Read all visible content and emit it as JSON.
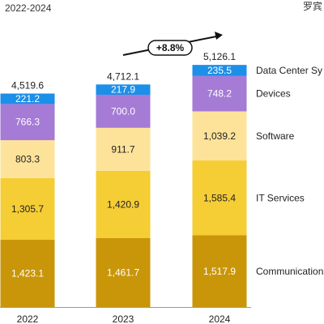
{
  "header": {
    "subtitle": "2022-2024",
    "watermark": "罗宾"
  },
  "chart_data": {
    "type": "bar",
    "stacked": true,
    "categories": [
      "2022",
      "2023",
      "2024"
    ],
    "totals": [
      "4,519.6",
      "4,712.1",
      "5,126.1"
    ],
    "series": [
      {
        "name": "Communications",
        "color": "#c9960a",
        "label_color": "#ffffff",
        "values": [
          1423.1,
          1461.7,
          1517.9
        ],
        "labels": [
          "1,423.1",
          "1,461.7",
          "1,517.9"
        ]
      },
      {
        "name": "IT Services",
        "color": "#f5cd35",
        "label_color": "#222222",
        "values": [
          1305.7,
          1420.9,
          1585.4
        ],
        "labels": [
          "1,305.7",
          "1,420.9",
          "1,585.4"
        ]
      },
      {
        "name": "Software",
        "color": "#fde39a",
        "label_color": "#222222",
        "values": [
          803.3,
          911.7,
          1039.2
        ],
        "labels": [
          "803.3",
          "911.7",
          "1,039.2"
        ]
      },
      {
        "name": "Devices",
        "color": "#a57bd6",
        "label_color": "#ffffff",
        "values": [
          766.3,
          700.0,
          748.2
        ],
        "labels": [
          "766.3",
          "700.0",
          "748.2"
        ]
      },
      {
        "name": "Data Center Sy",
        "color": "#1c8fe8",
        "label_color": "#ffffff",
        "values": [
          221.2,
          217.9,
          235.5
        ],
        "labels": [
          "221.2",
          "217.9",
          "235.5"
        ]
      }
    ],
    "annotation": {
      "text": "+8.8%"
    },
    "ylim": [
      0,
      5400
    ],
    "grid": false,
    "legend": "right"
  }
}
